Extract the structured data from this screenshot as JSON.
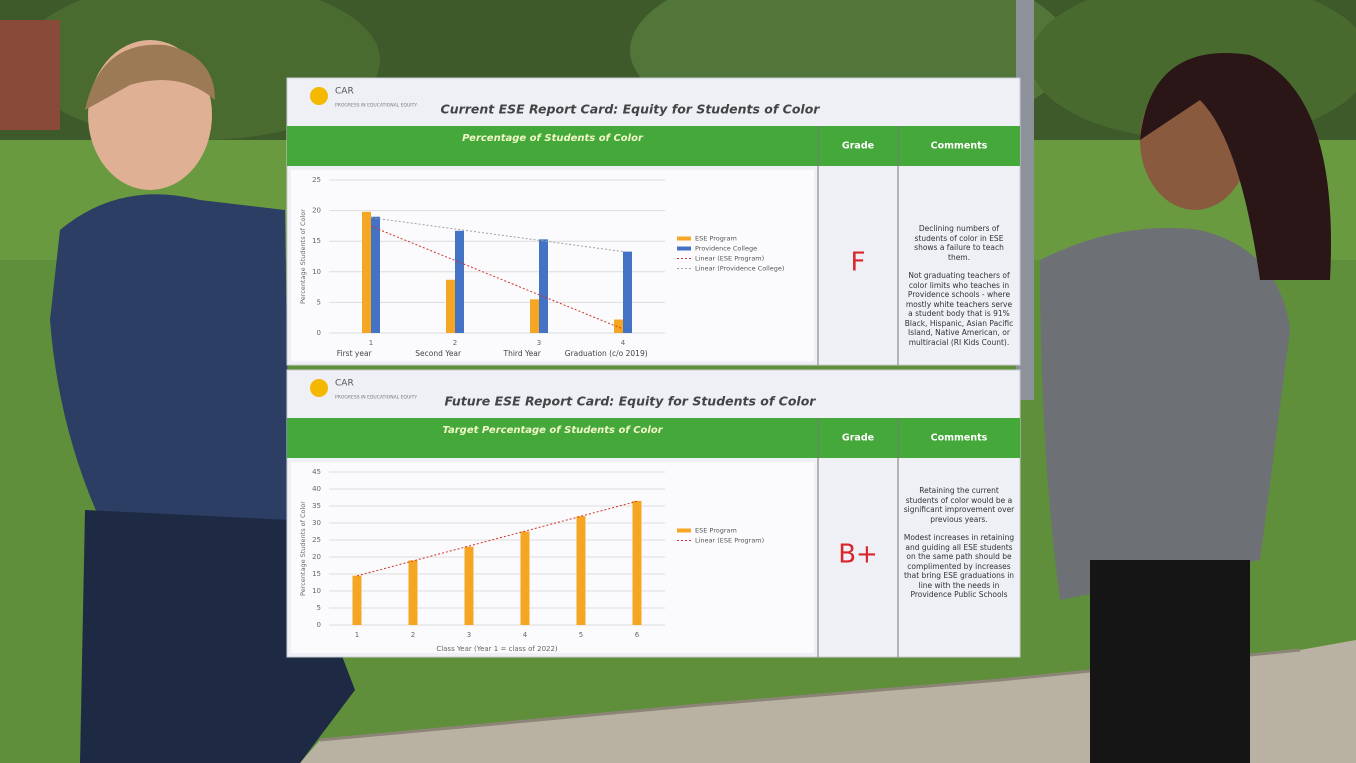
{
  "poster": [
    {
      "logo": {
        "name": "CAR",
        "tagline": "PROGRESS IN EDUCATIONAL EQUITY"
      },
      "title": "Current ESE Report Card: Equity for Students of Color",
      "grade_header": "Grade",
      "comments_header": "Comments",
      "grade": "F",
      "comments": [
        "Declining numbers of students of color in ESE shows a failure to teach them.",
        "Not graduating teachers of color limits who teaches in Providence schools - where mostly white teachers serve a student body that is 91% Black, Hispanic, Asian Pacific Island, Native American, or multiracial (RI Kids Count)."
      ]
    },
    {
      "logo": {
        "name": "CAR",
        "tagline": "PROGRESS IN EDUCATIONAL EQUITY"
      },
      "title": "Future ESE Report Card: Equity for Students of Color",
      "grade_header": "Grade",
      "comments_header": "Comments",
      "grade": "B+",
      "comments": [
        "Retaining the current students of color would be a significant improvement over previous years.",
        "Modest increases in retaining and guiding all ESE students on the same path should be complimented by increases that bring ESE graduations in line with the needs in Providence Public Schools"
      ]
    }
  ],
  "chart_data": [
    {
      "type": "bar",
      "title": "Percentage of Students of Color",
      "y_label": "Percentage Students of Color",
      "categories": [
        "1",
        "2",
        "3",
        "4"
      ],
      "period_labels": [
        "First year",
        "Second Year",
        "Third Year",
        "Graduation (c/o 2019)"
      ],
      "series": [
        {
          "name": "ESE Program",
          "color": "#f5a623",
          "values": [
            19.8,
            8.7,
            5.5,
            2.2
          ],
          "trendline": {
            "name": "Linear (ESE Program)",
            "color": "#d0322a"
          }
        },
        {
          "name": "Providence College",
          "color": "#4472c4",
          "values": [
            19,
            16.7,
            15.3,
            13.3
          ],
          "trendline": {
            "name": "Linear (Providence College)",
            "color": "#a0a0a0"
          }
        }
      ],
      "ylim": [
        0,
        25
      ],
      "yticks": [
        0,
        5,
        10,
        15,
        20,
        25
      ],
      "grid": true
    },
    {
      "type": "bar",
      "title": "Target Percentage of Students of Color",
      "y_label": "Percentage Students of Color",
      "x_label": "Class Year (Year 1 = class of 2022)",
      "categories": [
        "1",
        "2",
        "3",
        "4",
        "5",
        "6"
      ],
      "series": [
        {
          "name": "ESE Program",
          "color": "#f5a623",
          "values": [
            14.5,
            19,
            23,
            27.5,
            32,
            36.5
          ],
          "trendline": {
            "name": "Linear (ESE Program)",
            "color": "#d0322a"
          }
        }
      ],
      "ylim": [
        0,
        45
      ],
      "yticks": [
        0,
        5,
        10,
        15,
        20,
        25,
        30,
        35,
        40,
        45
      ],
      "grid": true
    }
  ]
}
